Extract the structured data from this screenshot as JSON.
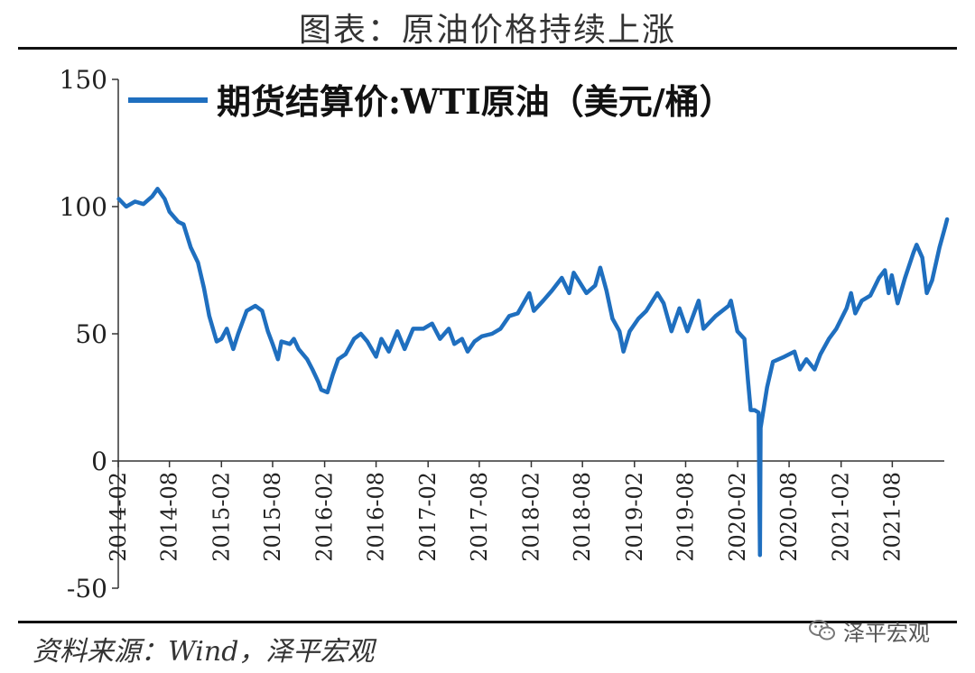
{
  "header": {
    "title": "图表：原油价格持续上涨"
  },
  "footer": {
    "source": "资料来源：Wind，泽平宏观",
    "watermark_text": "泽平宏观",
    "watermark_icon": "wechat-icon"
  },
  "chart_data": {
    "type": "line",
    "title": "图表：原油价格持续上涨",
    "xlabel": "",
    "ylabel": "",
    "ylim": [
      -50,
      150
    ],
    "yticks": [
      -50,
      0,
      50,
      100,
      150
    ],
    "xticks": [
      "2014-02",
      "2014-08",
      "2015-02",
      "2015-08",
      "2016-02",
      "2016-08",
      "2017-02",
      "2017-08",
      "2018-02",
      "2018-08",
      "2019-02",
      "2019-08",
      "2020-02",
      "2020-08",
      "2021-02",
      "2021-08"
    ],
    "xlim": [
      "2014-02",
      "2022-02"
    ],
    "grid": false,
    "legend_position": "top-left",
    "series": [
      {
        "name": "期货结算价:WTI原油（美元/桶）",
        "color": "#1f6fbf",
        "points": [
          [
            "2014-02-03",
            103
          ],
          [
            "2014-03-01",
            100
          ],
          [
            "2014-04-01",
            102
          ],
          [
            "2014-05-01",
            101
          ],
          [
            "2014-06-01",
            104
          ],
          [
            "2014-06-20",
            107
          ],
          [
            "2014-07-15",
            103
          ],
          [
            "2014-08-01",
            98
          ],
          [
            "2014-09-01",
            94
          ],
          [
            "2014-09-20",
            93
          ],
          [
            "2014-10-15",
            84
          ],
          [
            "2014-11-10",
            78
          ],
          [
            "2014-12-01",
            68
          ],
          [
            "2014-12-20",
            57
          ],
          [
            "2015-01-15",
            47
          ],
          [
            "2015-02-01",
            48
          ],
          [
            "2015-02-20",
            52
          ],
          [
            "2015-03-15",
            44
          ],
          [
            "2015-04-01",
            50
          ],
          [
            "2015-05-01",
            59
          ],
          [
            "2015-06-01",
            61
          ],
          [
            "2015-06-25",
            59
          ],
          [
            "2015-07-15",
            51
          ],
          [
            "2015-08-01",
            46
          ],
          [
            "2015-08-20",
            40
          ],
          [
            "2015-09-01",
            47
          ],
          [
            "2015-10-01",
            46
          ],
          [
            "2015-10-15",
            48
          ],
          [
            "2015-11-01",
            44
          ],
          [
            "2015-12-01",
            40
          ],
          [
            "2015-12-20",
            36
          ],
          [
            "2016-01-10",
            31
          ],
          [
            "2016-01-20",
            28
          ],
          [
            "2016-02-11",
            27
          ],
          [
            "2016-03-01",
            34
          ],
          [
            "2016-03-20",
            40
          ],
          [
            "2016-04-15",
            42
          ],
          [
            "2016-05-15",
            48
          ],
          [
            "2016-06-08",
            50
          ],
          [
            "2016-07-01",
            47
          ],
          [
            "2016-08-01",
            41
          ],
          [
            "2016-08-20",
            48
          ],
          [
            "2016-09-15",
            43
          ],
          [
            "2016-10-15",
            51
          ],
          [
            "2016-11-10",
            44
          ],
          [
            "2016-12-10",
            52
          ],
          [
            "2017-01-15",
            52
          ],
          [
            "2017-02-15",
            54
          ],
          [
            "2017-03-15",
            48
          ],
          [
            "2017-04-15",
            52
          ],
          [
            "2017-05-05",
            46
          ],
          [
            "2017-06-01",
            48
          ],
          [
            "2017-06-21",
            43
          ],
          [
            "2017-07-15",
            47
          ],
          [
            "2017-08-10",
            49
          ],
          [
            "2017-09-15",
            50
          ],
          [
            "2017-10-15",
            52
          ],
          [
            "2017-11-15",
            57
          ],
          [
            "2017-12-15",
            58
          ],
          [
            "2018-01-25",
            66
          ],
          [
            "2018-02-10",
            59
          ],
          [
            "2018-03-15",
            63
          ],
          [
            "2018-04-15",
            67
          ],
          [
            "2018-05-20",
            72
          ],
          [
            "2018-06-15",
            66
          ],
          [
            "2018-07-01",
            74
          ],
          [
            "2018-08-15",
            66
          ],
          [
            "2018-09-15",
            69
          ],
          [
            "2018-10-03",
            76
          ],
          [
            "2018-10-25",
            67
          ],
          [
            "2018-11-15",
            56
          ],
          [
            "2018-12-10",
            51
          ],
          [
            "2018-12-24",
            43
          ],
          [
            "2019-01-15",
            51
          ],
          [
            "2019-02-15",
            56
          ],
          [
            "2019-03-15",
            59
          ],
          [
            "2019-04-23",
            66
          ],
          [
            "2019-05-15",
            62
          ],
          [
            "2019-06-12",
            51
          ],
          [
            "2019-07-10",
            60
          ],
          [
            "2019-08-07",
            51
          ],
          [
            "2019-09-16",
            63
          ],
          [
            "2019-10-03",
            52
          ],
          [
            "2019-11-15",
            57
          ],
          [
            "2019-12-31",
            61
          ],
          [
            "2020-01-08",
            63
          ],
          [
            "2020-01-31",
            51
          ],
          [
            "2020-02-25",
            48
          ],
          [
            "2020-03-09",
            31
          ],
          [
            "2020-03-18",
            20
          ],
          [
            "2020-04-01",
            20
          ],
          [
            "2020-04-15",
            19
          ],
          [
            "2020-04-20",
            -37
          ],
          [
            "2020-04-22",
            13
          ],
          [
            "2020-05-15",
            29
          ],
          [
            "2020-06-05",
            39
          ],
          [
            "2020-07-15",
            41
          ],
          [
            "2020-08-20",
            43
          ],
          [
            "2020-09-08",
            36
          ],
          [
            "2020-10-01",
            40
          ],
          [
            "2020-10-30",
            36
          ],
          [
            "2020-11-20",
            42
          ],
          [
            "2020-12-20",
            48
          ],
          [
            "2021-01-15",
            52
          ],
          [
            "2021-02-20",
            60
          ],
          [
            "2021-03-08",
            66
          ],
          [
            "2021-03-23",
            58
          ],
          [
            "2021-04-15",
            63
          ],
          [
            "2021-05-15",
            65
          ],
          [
            "2021-06-15",
            72
          ],
          [
            "2021-07-06",
            75
          ],
          [
            "2021-07-19",
            66
          ],
          [
            "2021-07-30",
            73
          ],
          [
            "2021-08-20",
            62
          ],
          [
            "2021-09-15",
            72
          ],
          [
            "2021-10-15",
            82
          ],
          [
            "2021-10-26",
            85
          ],
          [
            "2021-11-15",
            80
          ],
          [
            "2021-12-01",
            66
          ],
          [
            "2021-12-20",
            71
          ],
          [
            "2022-01-15",
            84
          ],
          [
            "2022-02-04",
            92
          ],
          [
            "2022-02-11",
            95
          ]
        ]
      }
    ]
  }
}
